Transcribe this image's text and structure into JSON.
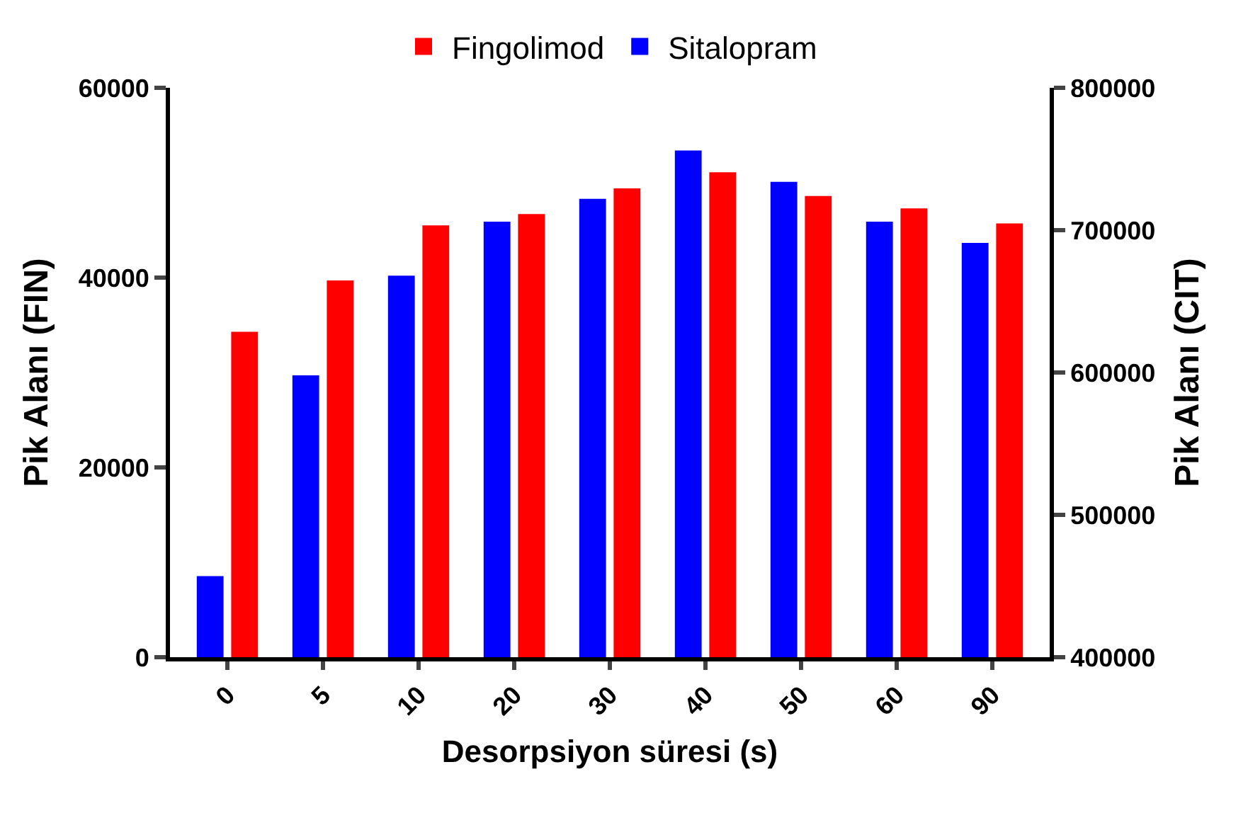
{
  "chart_data": {
    "type": "bar",
    "xlabel": "Desorpsiyon süresi (s)",
    "ylabel": "Pik Alanı (FIN)",
    "y2label": "Pik Alanı (CIT)",
    "categories": [
      "0",
      "5",
      "10",
      "20",
      "30",
      "40",
      "50",
      "60",
      "90"
    ],
    "series": [
      {
        "name": "Fingolimod",
        "color": "#ff0000",
        "values": [
          34300,
          39700,
          45500,
          46700,
          49400,
          51100,
          48600,
          47300,
          45700
        ]
      },
      {
        "name": "Sitalopram",
        "color": "#0000ff",
        "axis": "y2",
        "values": [
          457000,
          598000,
          668000,
          706000,
          722000,
          756000,
          734000,
          706000,
          691000
        ]
      }
    ],
    "ylim": [
      0,
      60000
    ],
    "yticks": [
      0,
      20000,
      40000,
      60000
    ],
    "y2lim": [
      400000,
      800000
    ],
    "y2ticks": [
      400000,
      500000,
      600000,
      700000,
      800000
    ],
    "legend": "top"
  }
}
